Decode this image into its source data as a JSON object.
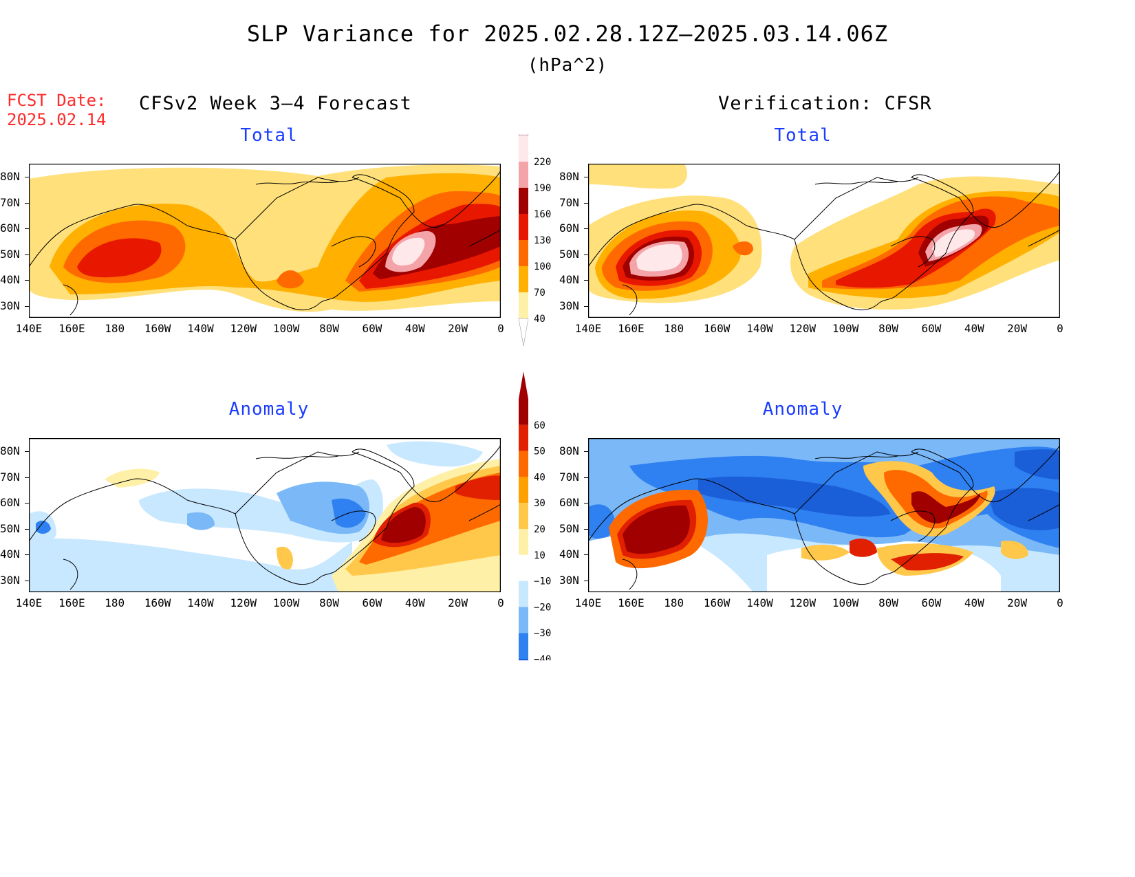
{
  "title": "SLP Variance for 2025.02.28.12Z‒2025.03.14.06Z",
  "units": "(hPa^2)",
  "fcst_label": "FCST Date:",
  "fcst_date": "2025.02.14",
  "left_header": "CFSv2 Week 3‒4 Forecast",
  "right_header": "Verification: CFSR",
  "panel_titles": {
    "top_left": "Total",
    "top_right": "Total",
    "bottom_left": "Anomaly",
    "bottom_right": "Anomaly"
  },
  "lat_labels": [
    "80N",
    "70N",
    "60N",
    "50N",
    "40N",
    "30N"
  ],
  "lon_labels": [
    "140E",
    "160E",
    "180",
    "160W",
    "140W",
    "120W",
    "100W",
    "80W",
    "60W",
    "40W",
    "20W",
    "0"
  ],
  "total_colorbar": {
    "levels": [
      "40",
      "70",
      "100",
      "130",
      "160",
      "190",
      "220"
    ],
    "colors": [
      "#fff0a8",
      "#ffb000",
      "#ff6a00",
      "#e81800",
      "#a00000",
      "#f4a4a8",
      "#ffe8ea"
    ]
  },
  "anomaly_colorbar": {
    "levels": [
      "−40",
      "−30",
      "−20",
      "−10",
      "10",
      "20",
      "30",
      "40",
      "50",
      "60"
    ],
    "colors": [
      "#1a5ed8",
      "#2f80f0",
      "#7ab8f8",
      "#c8e8ff",
      "#ffffff",
      "#fff0a8",
      "#ffc84a",
      "#ffa000",
      "#ff6a00",
      "#e02000",
      "#a00000"
    ]
  }
}
